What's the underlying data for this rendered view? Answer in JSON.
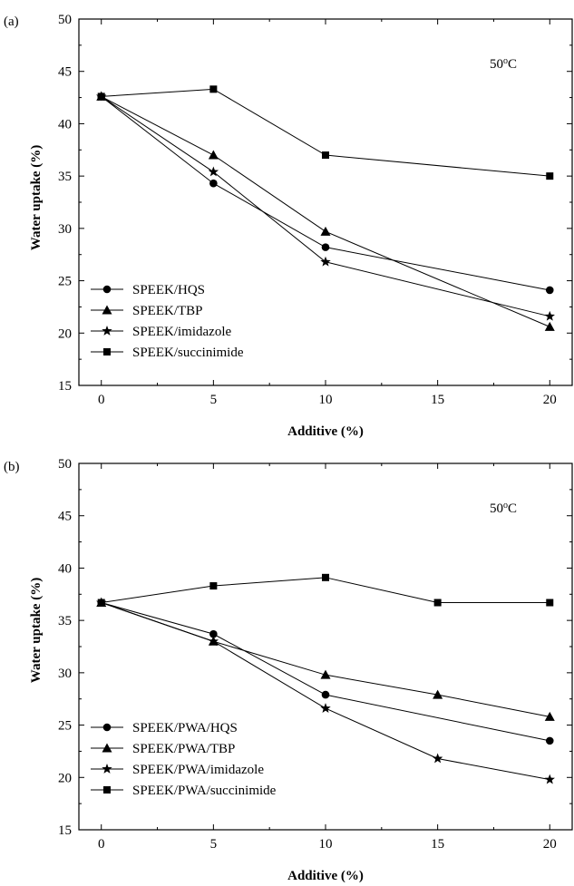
{
  "figure": {
    "panels": [
      {
        "label": "(a)",
        "annotation": "50",
        "annotation_sup": "o",
        "annotation_unit": "C"
      },
      {
        "label": "(b)",
        "annotation": "50",
        "annotation_sup": "o",
        "annotation_unit": "C"
      }
    ]
  },
  "chart_data": [
    {
      "type": "line",
      "title": "",
      "xlabel": "Additive (%)",
      "ylabel": "Water uptake (%)",
      "xlim": [
        -1,
        21
      ],
      "ylim": [
        15,
        50
      ],
      "xticks": [
        0,
        5,
        10,
        15,
        20
      ],
      "yticks": [
        15,
        20,
        25,
        30,
        35,
        40,
        45,
        50
      ],
      "grid": false,
      "legend_position": "bottom-left",
      "series": [
        {
          "name": "SPEEK/HQS",
          "marker": "circle",
          "x": [
            0,
            5,
            10,
            20
          ],
          "y": [
            42.6,
            34.3,
            28.2,
            24.1
          ]
        },
        {
          "name": "SPEEK/TBP",
          "marker": "triangle",
          "x": [
            0,
            5,
            10,
            20
          ],
          "y": [
            42.6,
            37.0,
            29.7,
            20.6
          ]
        },
        {
          "name": "SPEEK/imidazole",
          "marker": "star",
          "x": [
            0,
            5,
            10,
            20
          ],
          "y": [
            42.6,
            35.4,
            26.8,
            21.6
          ]
        },
        {
          "name": "SPEEK/succinimide",
          "marker": "square",
          "x": [
            0,
            5,
            10,
            20
          ],
          "y": [
            42.6,
            43.3,
            37.0,
            35.0
          ]
        }
      ]
    },
    {
      "type": "line",
      "title": "",
      "xlabel": "Additive (%)",
      "ylabel": "Water uptake (%)",
      "xlim": [
        -1,
        21
      ],
      "ylim": [
        15,
        50
      ],
      "xticks": [
        0,
        5,
        10,
        15,
        20
      ],
      "yticks": [
        15,
        20,
        25,
        30,
        35,
        40,
        45,
        50
      ],
      "grid": false,
      "legend_position": "bottom-left",
      "series": [
        {
          "name": "SPEEK/PWA/HQS",
          "marker": "circle",
          "x": [
            0,
            5,
            10,
            20
          ],
          "y": [
            36.7,
            33.7,
            27.9,
            23.5
          ]
        },
        {
          "name": "SPEEK/PWA/TBP",
          "marker": "triangle",
          "x": [
            0,
            5,
            10,
            15,
            20
          ],
          "y": [
            36.7,
            33.0,
            29.8,
            27.9,
            25.8
          ]
        },
        {
          "name": "SPEEK/PWA/imidazole",
          "marker": "star",
          "x": [
            0,
            5,
            10,
            15,
            20
          ],
          "y": [
            36.7,
            33.0,
            26.6,
            21.8,
            19.8
          ]
        },
        {
          "name": "SPEEK/PWA/succinimide",
          "marker": "square",
          "x": [
            0,
            5,
            10,
            15,
            20
          ],
          "y": [
            36.7,
            38.3,
            39.1,
            36.7,
            36.7
          ]
        }
      ]
    }
  ]
}
